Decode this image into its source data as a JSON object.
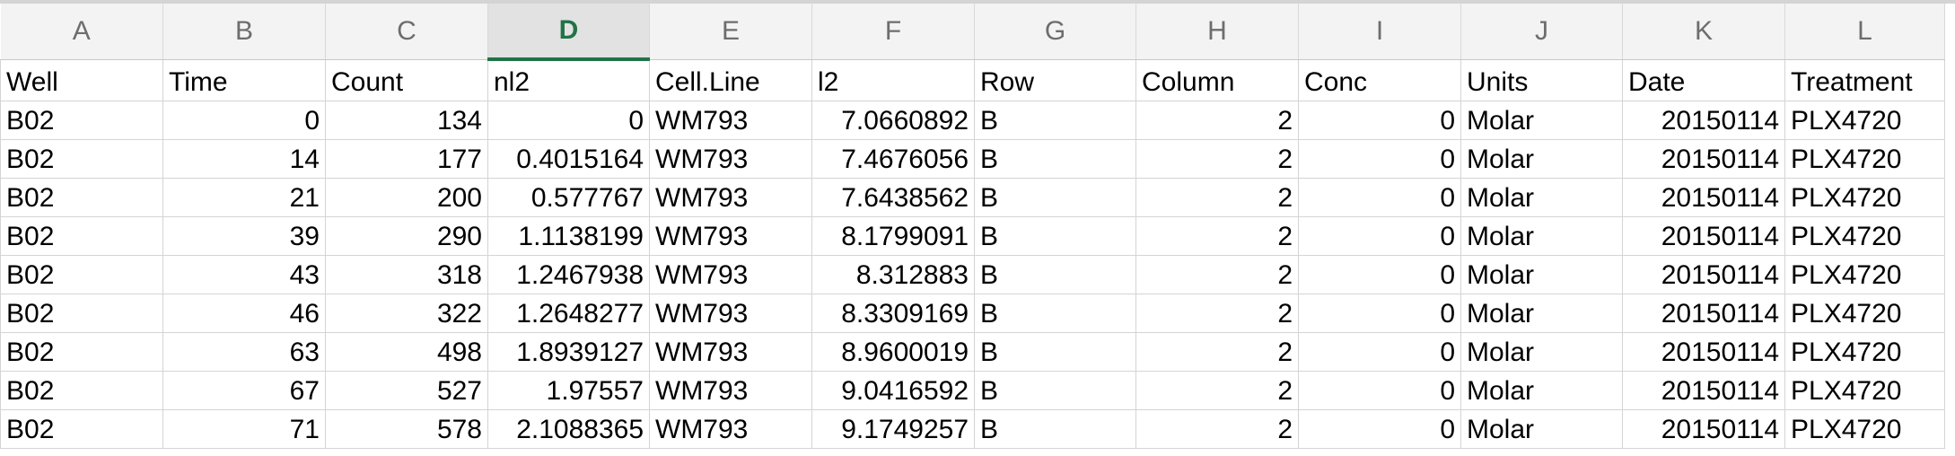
{
  "columns": [
    "A",
    "B",
    "C",
    "D",
    "E",
    "F",
    "G",
    "H",
    "I",
    "J",
    "K",
    "L"
  ],
  "active_column": "D",
  "headers": [
    "Well",
    "Time",
    "Count",
    "nl2",
    "Cell.Line",
    "l2",
    "Row",
    "Column",
    "Conc",
    "Units",
    "Date",
    "Treatment"
  ],
  "rows": [
    [
      "B02",
      "0",
      "134",
      "0",
      "WM793",
      "7.0660892",
      "B",
      "2",
      "0",
      "Molar",
      "20150114",
      "PLX4720"
    ],
    [
      "B02",
      "14",
      "177",
      "0.4015164",
      "WM793",
      "7.4676056",
      "B",
      "2",
      "0",
      "Molar",
      "20150114",
      "PLX4720"
    ],
    [
      "B02",
      "21",
      "200",
      "0.577767",
      "WM793",
      "7.6438562",
      "B",
      "2",
      "0",
      "Molar",
      "20150114",
      "PLX4720"
    ],
    [
      "B02",
      "39",
      "290",
      "1.1138199",
      "WM793",
      "8.1799091",
      "B",
      "2",
      "0",
      "Molar",
      "20150114",
      "PLX4720"
    ],
    [
      "B02",
      "43",
      "318",
      "1.2467938",
      "WM793",
      "8.312883",
      "B",
      "2",
      "0",
      "Molar",
      "20150114",
      "PLX4720"
    ],
    [
      "B02",
      "46",
      "322",
      "1.2648277",
      "WM793",
      "8.3309169",
      "B",
      "2",
      "0",
      "Molar",
      "20150114",
      "PLX4720"
    ],
    [
      "B02",
      "63",
      "498",
      "1.8939127",
      "WM793",
      "8.9600019",
      "B",
      "2",
      "0",
      "Molar",
      "20150114",
      "PLX4720"
    ],
    [
      "B02",
      "67",
      "527",
      "1.97557",
      "WM793",
      "9.0416592",
      "B",
      "2",
      "0",
      "Molar",
      "20150114",
      "PLX4720"
    ],
    [
      "B02",
      "71",
      "578",
      "2.1088365",
      "WM793",
      "9.1749257",
      "B",
      "2",
      "0",
      "Molar",
      "20150114",
      "PLX4720"
    ]
  ],
  "numeric_columns": [
    1,
    2,
    3,
    5,
    7,
    8,
    10
  ],
  "colors": {
    "accent": "#217346",
    "header_bg": "#f3f3f3",
    "gridline": "#d4d4d4"
  }
}
